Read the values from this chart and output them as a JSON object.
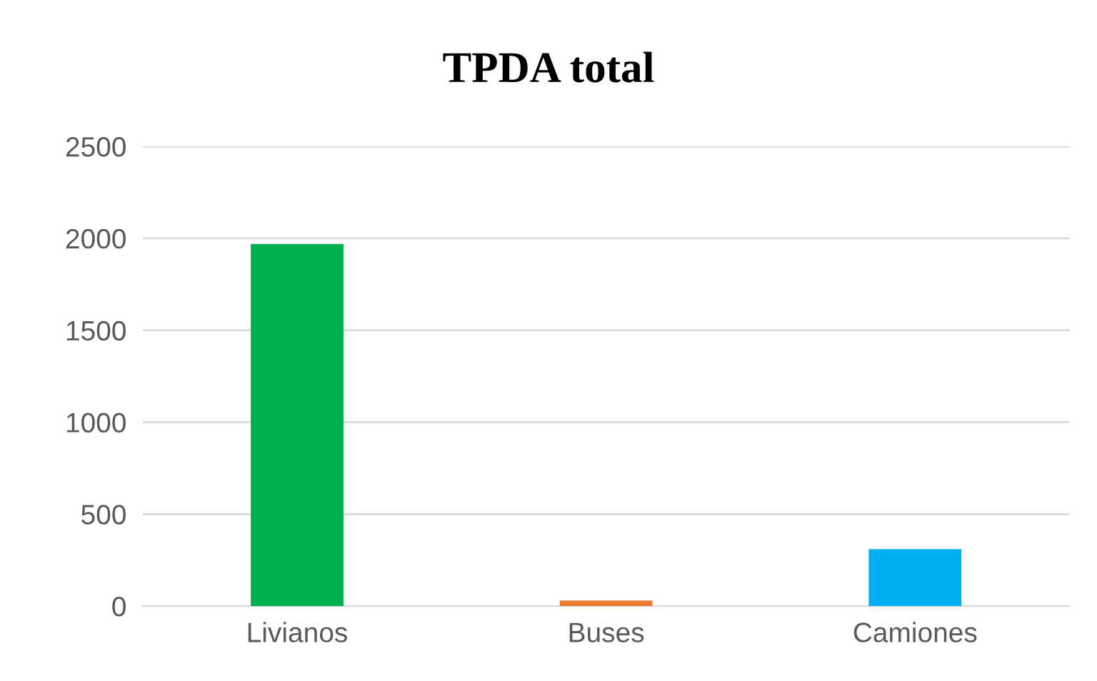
{
  "chart_data": {
    "type": "bar",
    "title": "TPDA total",
    "categories": [
      "Livianos",
      "Buses",
      "Camiones"
    ],
    "values": [
      1970,
      30,
      310
    ],
    "colors": [
      "#00b050",
      "#ed7d31",
      "#00b0f0"
    ],
    "ylim": [
      0,
      2500
    ],
    "yticks": [
      0,
      500,
      1000,
      1500,
      2000,
      2500
    ],
    "grid": "y",
    "legend": false
  }
}
